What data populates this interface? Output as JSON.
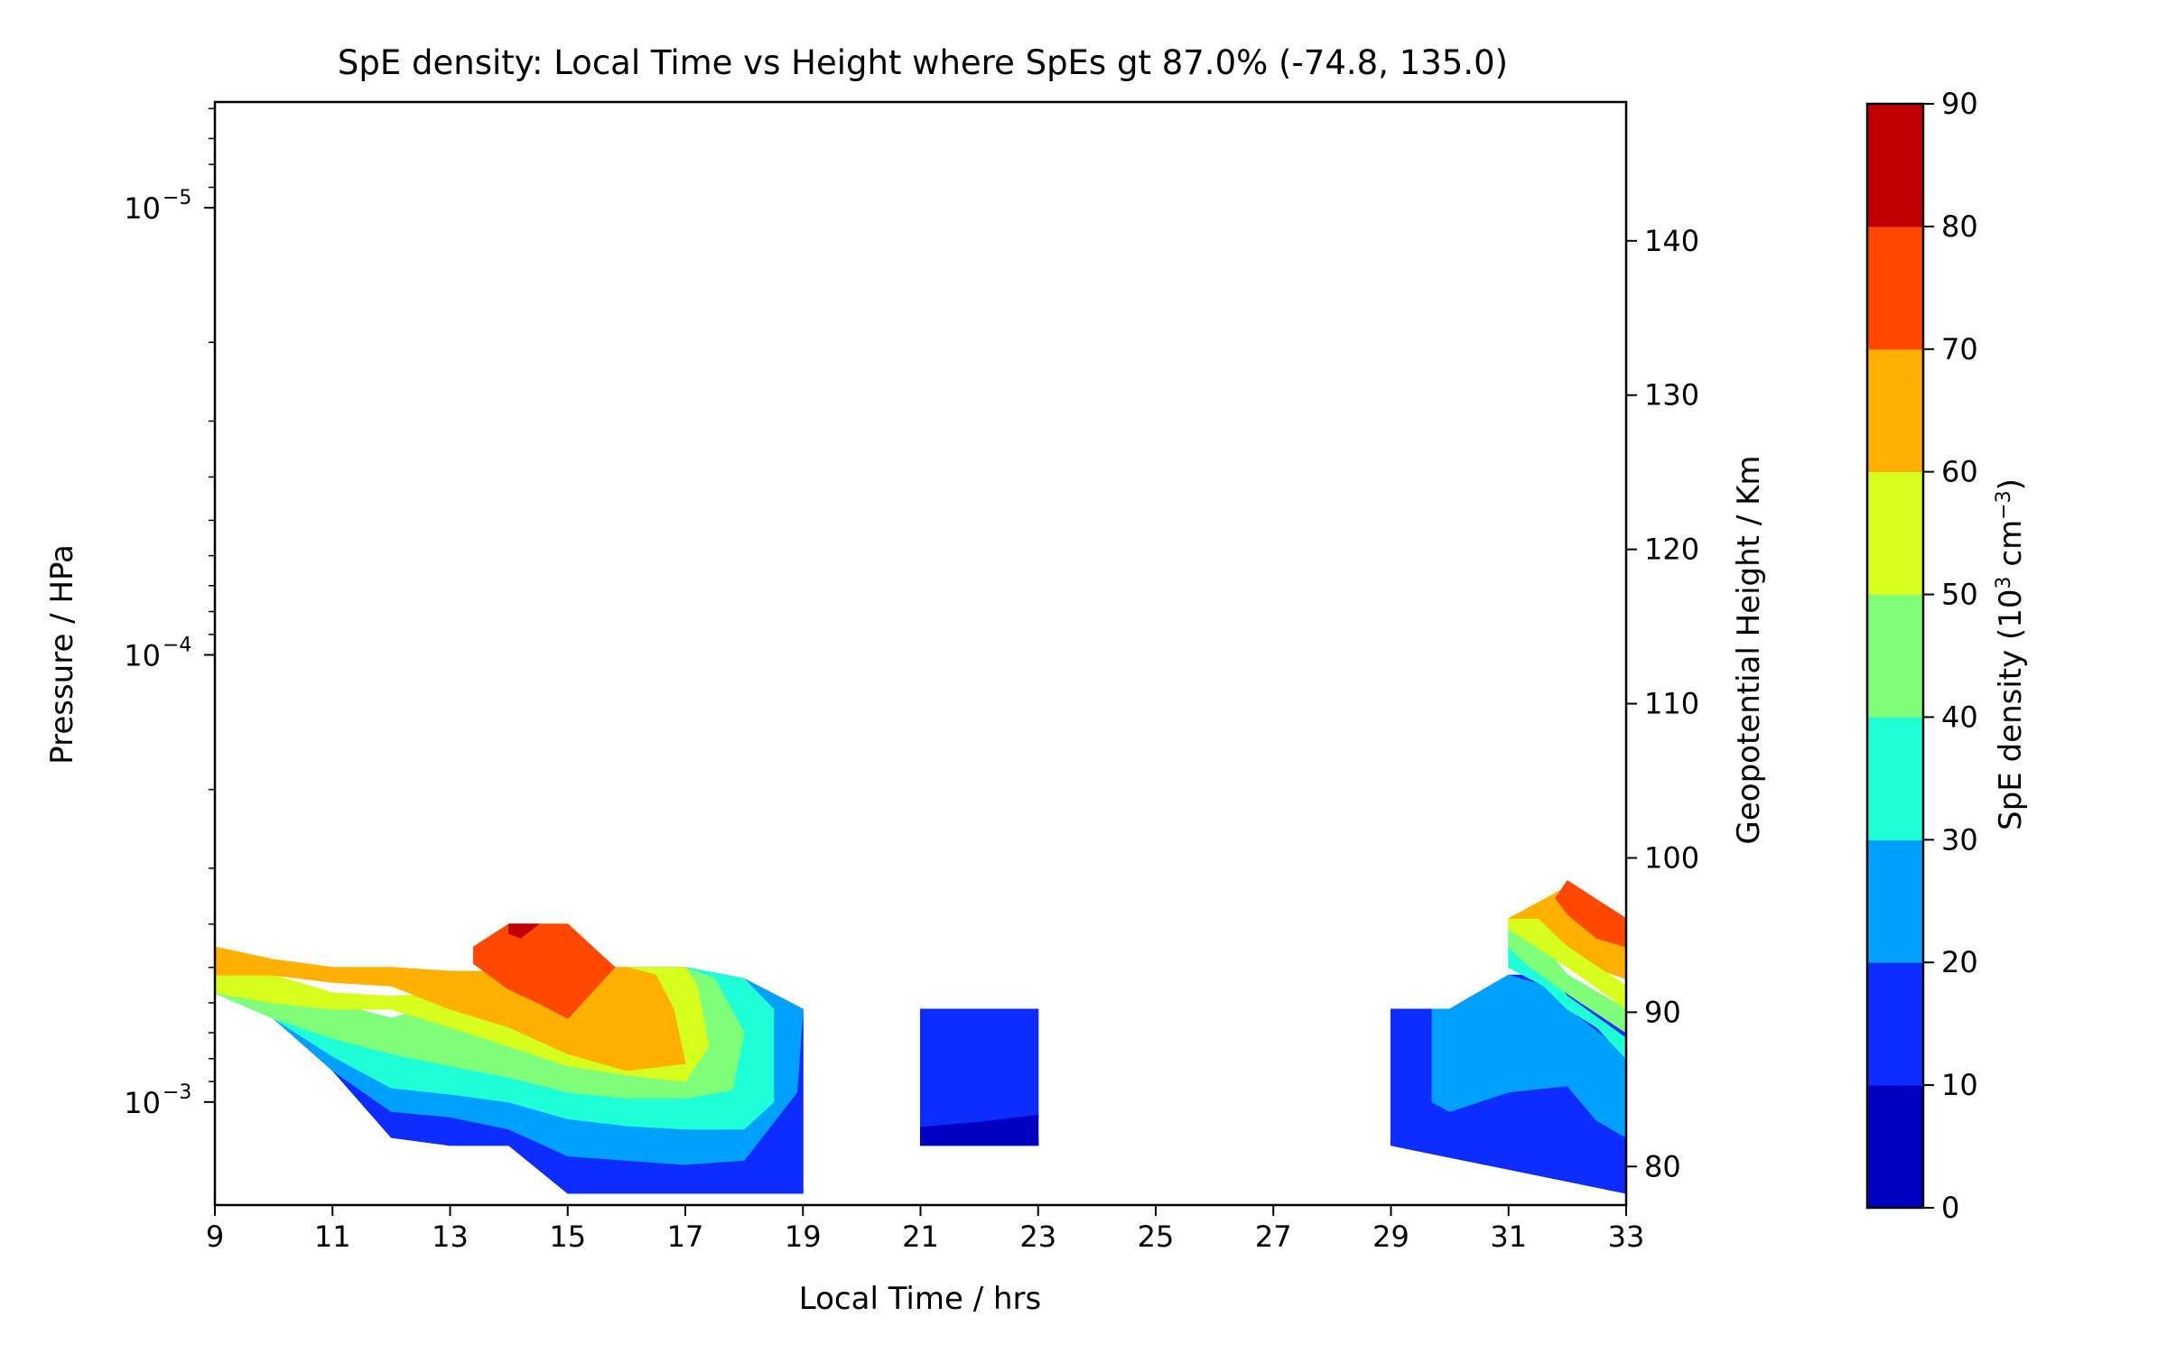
{
  "chart_data": {
    "type": "filled-contour",
    "title": "SpE density: Local Time vs Height where SpEs gt 87.0%  (-74.8, 135.0)",
    "xlabel": "Local Time / hrs",
    "ylabel_left": "Pressure / HPa",
    "ylabel_right": "Geopotential Height / Km",
    "colorbar_label": "SpE density (10",
    "colorbar_label_sup1": "3",
    "colorbar_label_mid": " cm",
    "colorbar_label_sup2": "−3",
    "colorbar_label_end": ")",
    "xlim": [
      9,
      33
    ],
    "x_ticks": [
      9,
      11,
      13,
      15,
      17,
      19,
      21,
      23,
      25,
      27,
      29,
      31,
      33
    ],
    "y_left_scale": "log",
    "y_left_lim_hpa": [
      0.0017,
      5.8e-06
    ],
    "y_left_major_ticks": [
      {
        "value": 1e-05,
        "base": "10",
        "exp": "−5"
      },
      {
        "value": 0.0001,
        "base": "10",
        "exp": "−4"
      },
      {
        "value": 0.001,
        "base": "10",
        "exp": "−3"
      }
    ],
    "y_right_lim_km": [
      77.5,
      149
    ],
    "y_right_ticks": [
      80,
      90,
      100,
      110,
      120,
      130,
      140
    ],
    "colorbar": {
      "levels": [
        0,
        10,
        20,
        30,
        40,
        50,
        60,
        70,
        80,
        90
      ],
      "colors": [
        "#0000c0",
        "#0d2cff",
        "#00a0ff",
        "#1effd8",
        "#7fff79",
        "#d6ff1e",
        "#ffb000",
        "#ff4800",
        "#c00000"
      ]
    },
    "regions": [
      {
        "level": 1,
        "points": [
          [
            9,
            0.00057
          ],
          [
            10,
            0.00065
          ],
          [
            11,
            0.00085
          ],
          [
            12,
            0.0012
          ],
          [
            13,
            0.00125
          ],
          [
            14,
            0.00125
          ],
          [
            15,
            0.0016
          ],
          [
            16,
            0.0016
          ],
          [
            17,
            0.0016
          ],
          [
            18,
            0.0016
          ],
          [
            19,
            0.0016
          ],
          [
            19,
            0.00062
          ],
          [
            18,
            0.00053
          ],
          [
            17,
            0.0005
          ],
          [
            16,
            0.0005
          ],
          [
            15,
            0.0005
          ],
          [
            14,
            0.00055
          ],
          [
            13,
            0.0006
          ],
          [
            12,
            0.00065
          ],
          [
            11,
            0.0006
          ],
          [
            10,
            0.00055
          ],
          [
            9,
            0.00045
          ]
        ]
      },
      {
        "level": 2,
        "points": [
          [
            9,
            0.00057
          ],
          [
            10,
            0.00065
          ],
          [
            11,
            0.00085
          ],
          [
            12,
            0.00105
          ],
          [
            13,
            0.00108
          ],
          [
            14,
            0.00115
          ],
          [
            15,
            0.00132
          ],
          [
            16,
            0.00135
          ],
          [
            17,
            0.00138
          ],
          [
            18,
            0.00135
          ],
          [
            18.9,
            0.00095
          ],
          [
            19,
            0.00062
          ],
          [
            18,
            0.00053
          ],
          [
            17,
            0.0005
          ],
          [
            16,
            0.0005
          ],
          [
            15,
            0.0005
          ],
          [
            14,
            0.00055
          ],
          [
            13,
            0.0006
          ],
          [
            12,
            0.00065
          ],
          [
            11,
            0.0006
          ],
          [
            10,
            0.00055
          ],
          [
            9,
            0.00045
          ]
        ]
      },
      {
        "level": 3,
        "points": [
          [
            9,
            0.00057
          ],
          [
            10,
            0.00065
          ],
          [
            11,
            0.00079
          ],
          [
            12,
            0.00093
          ],
          [
            13,
            0.00096
          ],
          [
            14,
            0.001
          ],
          [
            15,
            0.00109
          ],
          [
            16,
            0.00113
          ],
          [
            17,
            0.00115
          ],
          [
            18,
            0.00115
          ],
          [
            18.5,
            0.001
          ],
          [
            18.5,
            0.00062
          ],
          [
            18,
            0.00053
          ],
          [
            17,
            0.0005
          ],
          [
            16,
            0.0005
          ],
          [
            15,
            0.0005
          ],
          [
            14,
            0.00055
          ],
          [
            13,
            0.0006
          ],
          [
            12,
            0.00065
          ],
          [
            11,
            0.0006
          ],
          [
            10,
            0.00055
          ],
          [
            9,
            0.00045
          ]
        ]
      },
      {
        "level": 4,
        "points": [
          [
            9,
            0.00057
          ],
          [
            10,
            0.00065
          ],
          [
            11,
            0.00072
          ],
          [
            12,
            0.00078
          ],
          [
            13,
            0.00083
          ],
          [
            14,
            0.00088
          ],
          [
            15,
            0.00095
          ],
          [
            16,
            0.00098
          ],
          [
            17,
            0.00098
          ],
          [
            17.8,
            0.00094
          ],
          [
            18,
            0.0007
          ],
          [
            17.5,
            0.00053
          ],
          [
            17,
            0.0005
          ],
          [
            16,
            0.0005
          ],
          [
            15,
            0.0005
          ],
          [
            14,
            0.00055
          ],
          [
            13,
            0.0006
          ],
          [
            12,
            0.00065
          ],
          [
            11,
            0.0006
          ],
          [
            10,
            0.00055
          ],
          [
            9,
            0.00045
          ]
        ]
      },
      {
        "level": 5,
        "points": [
          [
            9,
            0.00057
          ],
          [
            10,
            0.0006
          ],
          [
            11,
            0.00062
          ],
          [
            12,
            0.00062
          ],
          [
            13,
            0.00068
          ],
          [
            14,
            0.00075
          ],
          [
            15,
            0.00083
          ],
          [
            16,
            0.00087
          ],
          [
            17,
            0.0009
          ],
          [
            17.4,
            0.00075
          ],
          [
            17.2,
            0.00055
          ],
          [
            17,
            0.0005
          ],
          [
            16,
            0.0005
          ],
          [
            15,
            0.0005
          ],
          [
            14,
            0.00055
          ],
          [
            13,
            0.00057
          ],
          [
            12,
            0.00058
          ],
          [
            11,
            0.00057
          ],
          [
            10,
            0.00052
          ],
          [
            9,
            0.00048
          ]
        ]
      },
      {
        "level": 6,
        "points": [
          [
            9,
            0.00052
          ],
          [
            10,
            0.00052
          ],
          [
            11,
            0.00054
          ],
          [
            12,
            0.00055
          ],
          [
            13,
            0.00062
          ],
          [
            14,
            0.00068
          ],
          [
            15,
            0.00078
          ],
          [
            16,
            0.00085
          ],
          [
            17,
            0.00082
          ],
          [
            16.8,
            0.00062
          ],
          [
            16.5,
            0.00052
          ],
          [
            16,
            0.0005
          ],
          [
            15,
            0.0005
          ],
          [
            14,
            0.00051
          ],
          [
            13,
            0.00051
          ],
          [
            12,
            0.0005
          ],
          [
            11,
            0.0005
          ],
          [
            10,
            0.00048
          ],
          [
            9,
            0.00045
          ]
        ]
      },
      {
        "level": 6,
        "points": [
          [
            31,
            0.000389
          ],
          [
            32,
            0.00033
          ],
          [
            33,
            0.00039
          ],
          [
            33,
            0.00053
          ],
          [
            32,
            0.00048
          ],
          [
            31.5,
            0.00043
          ],
          [
            31,
            0.00039
          ]
        ]
      },
      {
        "level": 7,
        "points": [
          [
            13.4,
            0.00045
          ],
          [
            14,
            0.0004
          ],
          [
            15,
            0.0004
          ],
          [
            15.8,
            0.0005
          ],
          [
            15,
            0.00065
          ],
          [
            14.5,
            0.0006
          ],
          [
            14,
            0.00056
          ],
          [
            13.4,
            0.00049
          ]
        ]
      },
      {
        "level": 7,
        "points": [
          [
            32,
            0.00032
          ],
          [
            33,
            0.000389
          ],
          [
            33,
            0.00045
          ],
          [
            32.5,
            0.00043
          ],
          [
            32,
            0.00038
          ],
          [
            31.8,
            0.00035
          ]
        ]
      },
      {
        "level": 8,
        "points": [
          [
            14,
            0.0004
          ],
          [
            14.5,
            0.0004
          ],
          [
            14.2,
            0.00043
          ],
          [
            14,
            0.00042
          ]
        ]
      },
      {
        "level": 1,
        "points": [
          [
            21,
            0.0012
          ],
          [
            23,
            0.0012
          ],
          [
            23,
            0.00125
          ],
          [
            21,
            0.00125
          ]
        ]
      },
      {
        "level": 1,
        "points": [
          [
            21,
            0.00062
          ],
          [
            23,
            0.00062
          ],
          [
            23,
            0.00107
          ],
          [
            22,
            0.00111
          ],
          [
            21,
            0.00114
          ]
        ]
      },
      {
        "level": 0,
        "points": [
          [
            21,
            0.00114
          ],
          [
            22,
            0.00111
          ],
          [
            23,
            0.00107
          ],
          [
            23,
            0.00125
          ],
          [
            21,
            0.00125
          ]
        ]
      },
      {
        "level": 1,
        "points": [
          [
            29,
            0.00062
          ],
          [
            30,
            0.00062
          ],
          [
            31,
            0.00052
          ],
          [
            32,
            0.00052
          ],
          [
            33,
            0.00062
          ],
          [
            33,
            0.0016
          ],
          [
            29,
            0.00125
          ]
        ]
      },
      {
        "level": 2,
        "points": [
          [
            29.7,
            0.00062
          ],
          [
            30,
            0.00062
          ],
          [
            31,
            0.00052
          ],
          [
            31.6,
            0.00055
          ],
          [
            32,
            0.00062
          ],
          [
            33,
            0.00078
          ],
          [
            33,
            0.0012
          ],
          [
            32.5,
            0.0011
          ],
          [
            32,
            0.00092
          ],
          [
            31,
            0.00095
          ],
          [
            30,
            0.00105
          ],
          [
            29.7,
            0.001
          ]
        ]
      },
      {
        "level": 3,
        "points": [
          [
            31,
            0.00043
          ],
          [
            31.5,
            0.00049
          ],
          [
            32,
            0.00058
          ],
          [
            33,
            0.00072
          ],
          [
            33,
            0.0008
          ],
          [
            32.5,
            0.00068
          ],
          [
            32,
            0.00062
          ],
          [
            31.6,
            0.00055
          ],
          [
            31,
            0.0005
          ]
        ]
      },
      {
        "level": 4,
        "points": [
          [
            31,
            0.00039
          ],
          [
            31.5,
            0.00043
          ],
          [
            32,
            0.00052
          ],
          [
            33,
            0.00062
          ],
          [
            33,
            0.0007
          ],
          [
            32.4,
            0.00062
          ],
          [
            31.8,
            0.00055
          ],
          [
            31.3,
            0.00049
          ],
          [
            31,
            0.00045
          ]
        ]
      },
      {
        "level": 5,
        "points": [
          [
            31,
            0.00039
          ],
          [
            31.5,
            0.00039
          ],
          [
            32,
            0.00045
          ],
          [
            33,
            0.00055
          ],
          [
            33,
            0.00062
          ],
          [
            32.2,
            0.00052
          ],
          [
            31.6,
            0.00046
          ],
          [
            31,
            0.00041
          ]
        ]
      }
    ]
  }
}
